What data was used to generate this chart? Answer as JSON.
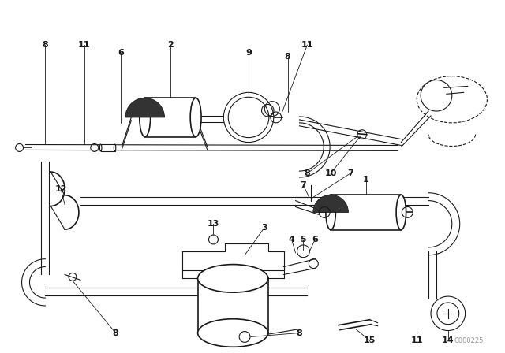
{
  "bg_color": "#ffffff",
  "line_color": "#1a1a1a",
  "fig_width": 6.4,
  "fig_height": 4.48,
  "dpi": 100,
  "watermark": "C000225"
}
